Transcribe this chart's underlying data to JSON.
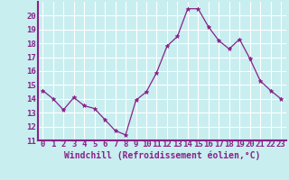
{
  "x": [
    0,
    1,
    2,
    3,
    4,
    5,
    6,
    7,
    8,
    9,
    10,
    11,
    12,
    13,
    14,
    15,
    16,
    17,
    18,
    19,
    20,
    21,
    22,
    23
  ],
  "y": [
    14.6,
    14.0,
    13.2,
    14.1,
    13.5,
    13.3,
    12.5,
    11.7,
    11.4,
    13.9,
    14.5,
    15.9,
    17.8,
    18.5,
    20.5,
    20.5,
    19.2,
    18.2,
    17.6,
    18.3,
    16.9,
    15.3,
    14.6,
    14.0
  ],
  "line_color": "#882288",
  "marker": "*",
  "marker_size": 3.5,
  "background_color": "#c8eef0",
  "grid_color": "#ffffff",
  "xlabel": "Windchill (Refroidissement éolien,°C)",
  "xlabel_color": "#882288",
  "tick_color": "#882288",
  "axis_color": "#882288",
  "ylim": [
    11,
    21
  ],
  "xlim": [
    -0.5,
    23.5
  ],
  "yticks": [
    11,
    12,
    13,
    14,
    15,
    16,
    17,
    18,
    19,
    20
  ],
  "xticks": [
    0,
    1,
    2,
    3,
    4,
    5,
    6,
    7,
    8,
    9,
    10,
    11,
    12,
    13,
    14,
    15,
    16,
    17,
    18,
    19,
    20,
    21,
    22,
    23
  ],
  "font_size": 6.5,
  "label_font_size": 7.0
}
